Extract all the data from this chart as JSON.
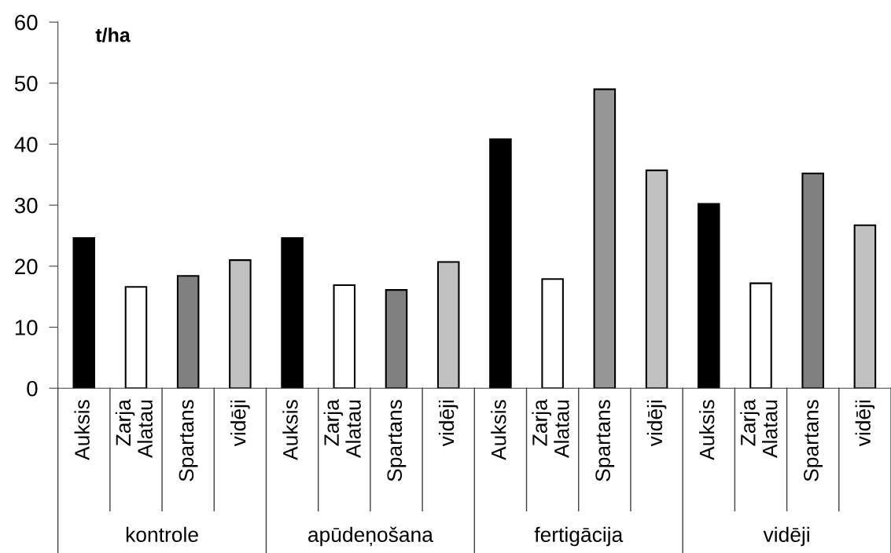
{
  "chart_data": {
    "type": "bar",
    "ylabel": "t/ha",
    "categories": [
      "Auksis",
      "Zarja Alatau",
      "Spartans",
      "vidēji",
      "Auksis",
      "Zarja Alatau",
      "Spartans",
      "vidēji",
      "Auksis",
      "Zarja Alatau",
      "Spartans",
      "vidēji",
      "Auksis",
      "Zarja Alatau",
      "Spartans",
      "vidēji"
    ],
    "values": [
      24.6,
      16.6,
      18.4,
      21.0,
      24.6,
      16.9,
      16.1,
      20.7,
      40.8,
      17.9,
      49.0,
      35.7,
      30.2,
      17.2,
      35.2,
      26.7
    ],
    "colors": [
      "#000000",
      "#ffffff",
      "#808080",
      "#c0c0c0",
      "#000000",
      "#ffffff",
      "#808080",
      "#c0c0c0",
      "#000000",
      "#ffffff",
      "#969696",
      "#c0c0c0",
      "#000000",
      "#ffffff",
      "#808080",
      "#c0c0c0"
    ],
    "annotations": [
      "kontrole",
      "apūdeņošana",
      "fertigācija",
      "vidēji"
    ],
    "ylim": [
      0,
      60
    ],
    "yticks": [
      0,
      10,
      20,
      30,
      40,
      50,
      60
    ],
    "grid": false,
    "legend": false
  }
}
